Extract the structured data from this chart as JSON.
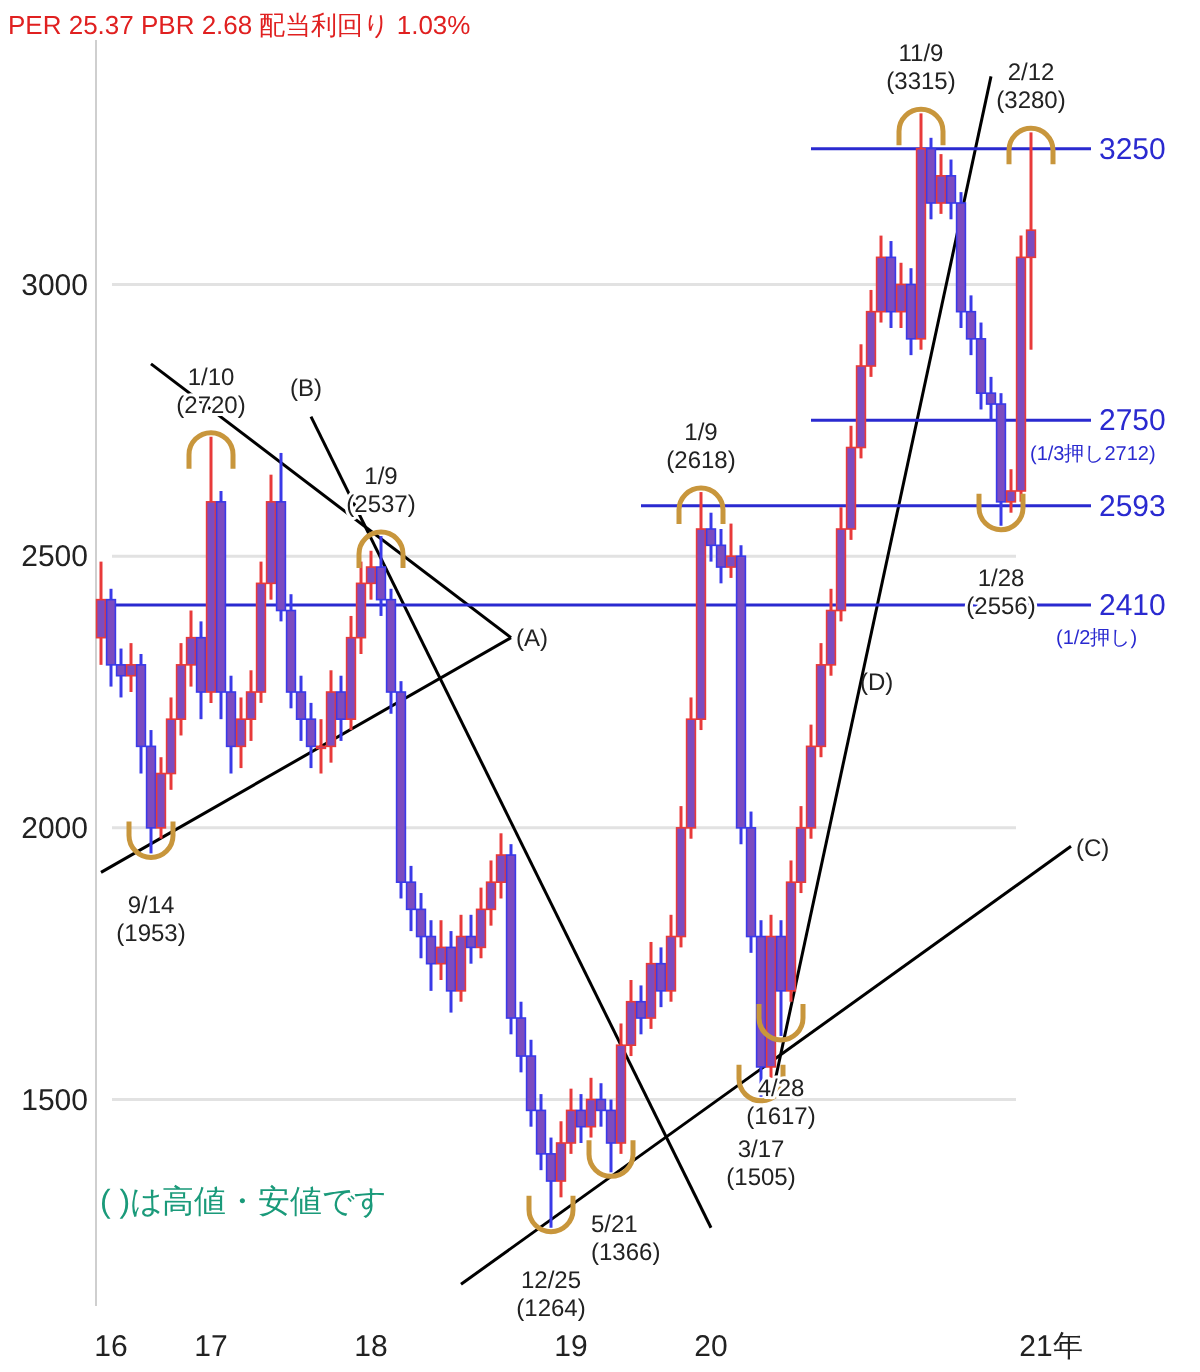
{
  "chart_data": {
    "type": "candlestick",
    "title": "PER 25.37 PBR 2.68 配当利回り 1.03%",
    "categories": [
      null,
      "16",
      null,
      null,
      null,
      null,
      null,
      null,
      null,
      null,
      null,
      "17",
      null,
      null,
      null,
      null,
      null,
      null,
      null,
      null,
      null,
      null,
      null,
      null,
      null,
      null,
      null,
      "18",
      null,
      null,
      null,
      null,
      null,
      null,
      null,
      null,
      null,
      null,
      null,
      null,
      null,
      null,
      null,
      null,
      null,
      null,
      null,
      "19",
      null,
      null,
      null,
      null,
      null,
      null,
      null,
      null,
      null,
      null,
      null,
      null,
      null,
      "20",
      null,
      null,
      null,
      null,
      null,
      null,
      null,
      null,
      null,
      null,
      null,
      null,
      null,
      null,
      null,
      null,
      null,
      null,
      null,
      null,
      null,
      null,
      null,
      null,
      null,
      null,
      null,
      null,
      null,
      null,
      null,
      null,
      null,
      "21年",
      null,
      null,
      null,
      null
    ],
    "ohlc": [
      [
        2350,
        2490,
        2300,
        2420
      ],
      [
        2420,
        2440,
        2260,
        2300
      ],
      [
        2300,
        2330,
        2240,
        2280
      ],
      [
        2280,
        2340,
        2250,
        2300
      ],
      [
        2300,
        2320,
        2100,
        2150
      ],
      [
        2150,
        2180,
        1953,
        2000
      ],
      [
        2000,
        2130,
        1980,
        2100
      ],
      [
        2100,
        2240,
        2070,
        2200
      ],
      [
        2200,
        2340,
        2170,
        2300
      ],
      [
        2300,
        2400,
        2260,
        2350
      ],
      [
        2350,
        2380,
        2200,
        2250
      ],
      [
        2250,
        2720,
        2230,
        2600
      ],
      [
        2600,
        2620,
        2200,
        2250
      ],
      [
        2250,
        2280,
        2100,
        2150
      ],
      [
        2150,
        2240,
        2110,
        2200
      ],
      [
        2200,
        2290,
        2160,
        2250
      ],
      [
        2250,
        2490,
        2230,
        2450
      ],
      [
        2450,
        2650,
        2420,
        2600
      ],
      [
        2600,
        2690,
        2380,
        2400
      ],
      [
        2400,
        2430,
        2220,
        2250
      ],
      [
        2250,
        2280,
        2160,
        2200
      ],
      [
        2200,
        2230,
        2110,
        2150
      ],
      [
        2150,
        2200,
        2100,
        2150
      ],
      [
        2150,
        2290,
        2120,
        2250
      ],
      [
        2250,
        2280,
        2160,
        2200
      ],
      [
        2200,
        2390,
        2180,
        2350
      ],
      [
        2350,
        2490,
        2320,
        2450
      ],
      [
        2450,
        2510,
        2420,
        2480
      ],
      [
        2480,
        2537,
        2390,
        2420
      ],
      [
        2420,
        2440,
        2210,
        2250
      ],
      [
        2250,
        2270,
        1870,
        1900
      ],
      [
        1900,
        1930,
        1810,
        1850
      ],
      [
        1850,
        1880,
        1760,
        1800
      ],
      [
        1800,
        1830,
        1700,
        1750
      ],
      [
        1750,
        1830,
        1720,
        1780
      ],
      [
        1780,
        1810,
        1660,
        1700
      ],
      [
        1700,
        1840,
        1680,
        1800
      ],
      [
        1800,
        1840,
        1750,
        1780
      ],
      [
        1780,
        1890,
        1760,
        1850
      ],
      [
        1850,
        1940,
        1820,
        1900
      ],
      [
        1900,
        1990,
        1870,
        1950
      ],
      [
        1950,
        1970,
        1620,
        1650
      ],
      [
        1650,
        1680,
        1550,
        1580
      ],
      [
        1580,
        1610,
        1450,
        1480
      ],
      [
        1480,
        1510,
        1370,
        1400
      ],
      [
        1400,
        1430,
        1264,
        1350
      ],
      [
        1350,
        1460,
        1320,
        1420
      ],
      [
        1420,
        1520,
        1400,
        1480
      ],
      [
        1480,
        1510,
        1420,
        1450
      ],
      [
        1450,
        1540,
        1430,
        1500
      ],
      [
        1500,
        1530,
        1450,
        1480
      ],
      [
        1480,
        1500,
        1366,
        1420
      ],
      [
        1420,
        1640,
        1400,
        1600
      ],
      [
        1600,
        1720,
        1580,
        1680
      ],
      [
        1680,
        1710,
        1620,
        1650
      ],
      [
        1650,
        1790,
        1630,
        1750
      ],
      [
        1750,
        1780,
        1670,
        1700
      ],
      [
        1700,
        1840,
        1680,
        1800
      ],
      [
        1800,
        2040,
        1780,
        2000
      ],
      [
        2000,
        2240,
        1980,
        2200
      ],
      [
        2200,
        2618,
        2180,
        2550
      ],
      [
        2550,
        2580,
        2490,
        2520
      ],
      [
        2520,
        2550,
        2450,
        2480
      ],
      [
        2480,
        2560,
        2460,
        2500
      ],
      [
        2500,
        2520,
        1970,
        2000
      ],
      [
        2000,
        2030,
        1770,
        1800
      ],
      [
        1800,
        1830,
        1505,
        1560
      ],
      [
        1560,
        1840,
        1540,
        1800
      ],
      [
        1800,
        1830,
        1617,
        1700
      ],
      [
        1700,
        1940,
        1680,
        1900
      ],
      [
        1900,
        2040,
        1880,
        2000
      ],
      [
        2000,
        2190,
        1980,
        2150
      ],
      [
        2150,
        2340,
        2130,
        2300
      ],
      [
        2300,
        2440,
        2280,
        2400
      ],
      [
        2400,
        2590,
        2380,
        2550
      ],
      [
        2550,
        2740,
        2530,
        2700
      ],
      [
        2700,
        2890,
        2680,
        2850
      ],
      [
        2850,
        2990,
        2830,
        2950
      ],
      [
        2950,
        3090,
        2930,
        3050
      ],
      [
        3050,
        3080,
        2920,
        2950
      ],
      [
        2950,
        3040,
        2920,
        3000
      ],
      [
        3000,
        3030,
        2870,
        2900
      ],
      [
        2900,
        3315,
        2880,
        3250
      ],
      [
        3250,
        3270,
        3120,
        3150
      ],
      [
        3150,
        3240,
        3130,
        3200
      ],
      [
        3200,
        3230,
        3120,
        3150
      ],
      [
        3150,
        3170,
        2920,
        2950
      ],
      [
        2950,
        2980,
        2870,
        2900
      ],
      [
        2900,
        2930,
        2770,
        2800
      ],
      [
        2800,
        2830,
        2750,
        2780
      ],
      [
        2780,
        2800,
        2556,
        2600
      ],
      [
        2600,
        2660,
        2580,
        2620
      ],
      [
        2620,
        3090,
        2600,
        3050
      ],
      [
        3050,
        3280,
        2880,
        3100
      ],
      null,
      null,
      null,
      null,
      null,
      null
    ],
    "series": [
      {
        "type": "line",
        "color": "#000000",
        "values": [
          null,
          null,
          null,
          null,
          null,
          2854,
          null,
          null,
          null,
          null,
          null,
          null,
          null,
          null,
          null,
          null,
          null,
          null,
          null,
          null,
          null,
          null,
          null,
          null,
          null,
          null,
          null,
          null,
          null,
          null,
          null,
          null,
          null,
          null,
          null,
          null,
          null,
          null,
          null,
          null,
          null,
          2350,
          null,
          null,
          null,
          null,
          null,
          null,
          null,
          null,
          null,
          null,
          null,
          null,
          null,
          null,
          null,
          null,
          null,
          null,
          null,
          null,
          null,
          null,
          null,
          null,
          null,
          null,
          null,
          null,
          null,
          null,
          null,
          null,
          null,
          null,
          null,
          null,
          null,
          null,
          null,
          null,
          null,
          null,
          null,
          null,
          null,
          null,
          null,
          null,
          null,
          null,
          null,
          null,
          null,
          null,
          null,
          null,
          null,
          null
        ]
      },
      {
        "type": "line",
        "color": "#000000",
        "values": [
          1918,
          null,
          null,
          null,
          null,
          null,
          null,
          null,
          null,
          null,
          null,
          null,
          null,
          null,
          null,
          null,
          null,
          null,
          null,
          null,
          null,
          null,
          null,
          null,
          null,
          null,
          null,
          null,
          null,
          null,
          null,
          null,
          null,
          null,
          null,
          null,
          null,
          null,
          null,
          null,
          null,
          2350,
          null,
          null,
          null,
          null,
          null,
          null,
          null,
          null,
          null,
          null,
          null,
          null,
          null,
          null,
          null,
          null,
          null,
          null,
          null,
          null,
          null,
          null,
          null,
          null,
          null,
          null,
          null,
          null,
          null,
          null,
          null,
          null,
          null,
          null,
          null,
          null,
          null,
          null,
          null,
          null,
          null,
          null,
          null,
          null,
          null,
          null,
          null,
          null,
          null,
          null,
          null,
          null,
          null,
          null,
          null,
          null,
          null,
          null
        ]
      },
      {
        "type": "line",
        "color": "#000000",
        "values": [
          null,
          null,
          null,
          null,
          null,
          null,
          null,
          null,
          null,
          null,
          null,
          null,
          null,
          null,
          null,
          null,
          null,
          null,
          null,
          null,
          null,
          2757,
          null,
          null,
          null,
          null,
          null,
          null,
          null,
          null,
          null,
          null,
          null,
          null,
          null,
          null,
          null,
          null,
          null,
          null,
          null,
          null,
          null,
          null,
          null,
          null,
          null,
          null,
          null,
          null,
          null,
          null,
          null,
          null,
          null,
          null,
          null,
          null,
          null,
          null,
          null,
          1264,
          null,
          null,
          null,
          null,
          null,
          null,
          null,
          null,
          null,
          null,
          null,
          null,
          null,
          null,
          null,
          null,
          null,
          null,
          null,
          null,
          null,
          null,
          null,
          null,
          null,
          null,
          null,
          null,
          null,
          null,
          null,
          null,
          null,
          null,
          null,
          null,
          null,
          null
        ]
      },
      {
        "type": "line",
        "color": "#000000",
        "values": [
          null,
          null,
          null,
          null,
          null,
          null,
          null,
          null,
          null,
          null,
          null,
          null,
          null,
          null,
          null,
          null,
          null,
          null,
          null,
          null,
          null,
          null,
          null,
          null,
          null,
          null,
          null,
          null,
          null,
          null,
          null,
          null,
          null,
          null,
          null,
          null,
          1160,
          null,
          null,
          null,
          null,
          null,
          null,
          null,
          null,
          null,
          null,
          null,
          null,
          null,
          null,
          null,
          null,
          null,
          null,
          null,
          null,
          null,
          null,
          null,
          null,
          null,
          null,
          null,
          null,
          null,
          null,
          null,
          null,
          null,
          null,
          null,
          null,
          null,
          null,
          null,
          null,
          null,
          null,
          null,
          null,
          null,
          null,
          null,
          null,
          null,
          null,
          null,
          null,
          null,
          null,
          null,
          null,
          null,
          null,
          null,
          null,
          1966,
          null,
          null
        ]
      },
      {
        "type": "line",
        "color": "#000000",
        "values": [
          null,
          null,
          null,
          null,
          null,
          null,
          null,
          null,
          null,
          null,
          null,
          null,
          null,
          null,
          null,
          null,
          null,
          null,
          null,
          null,
          null,
          null,
          null,
          null,
          null,
          null,
          null,
          null,
          null,
          null,
          null,
          null,
          null,
          null,
          null,
          null,
          null,
          null,
          null,
          null,
          null,
          null,
          null,
          null,
          null,
          null,
          null,
          null,
          null,
          null,
          null,
          null,
          null,
          null,
          null,
          null,
          null,
          null,
          null,
          null,
          null,
          null,
          null,
          null,
          null,
          null,
          null,
          1500,
          null,
          null,
          null,
          null,
          null,
          null,
          null,
          null,
          null,
          null,
          null,
          null,
          null,
          null,
          null,
          null,
          null,
          null,
          null,
          null,
          null,
          3383,
          null,
          null,
          null,
          null,
          null,
          null,
          null,
          null,
          null,
          null
        ]
      },
      {
        "type": "line",
        "color": "#2a2ad0",
        "name": "3250",
        "values": [
          null,
          null,
          null,
          null,
          null,
          null,
          null,
          null,
          null,
          null,
          null,
          null,
          null,
          null,
          null,
          null,
          null,
          null,
          null,
          null,
          null,
          null,
          null,
          null,
          null,
          null,
          null,
          null,
          null,
          null,
          null,
          null,
          null,
          null,
          null,
          null,
          null,
          null,
          null,
          null,
          null,
          null,
          null,
          null,
          null,
          null,
          null,
          null,
          null,
          null,
          null,
          null,
          null,
          null,
          null,
          null,
          null,
          null,
          null,
          null,
          null,
          null,
          null,
          null,
          null,
          null,
          null,
          null,
          null,
          null,
          null,
          3250,
          null,
          null,
          null,
          null,
          null,
          null,
          null,
          null,
          null,
          null,
          null,
          null,
          null,
          null,
          null,
          null,
          null,
          null,
          null,
          null,
          null,
          null,
          null,
          null,
          null,
          null,
          null,
          3250
        ]
      },
      {
        "type": "line",
        "color": "#2a2ad0",
        "name": "2750",
        "values": [
          null,
          null,
          null,
          null,
          null,
          null,
          null,
          null,
          null,
          null,
          null,
          null,
          null,
          null,
          null,
          null,
          null,
          null,
          null,
          null,
          null,
          null,
          null,
          null,
          null,
          null,
          null,
          null,
          null,
          null,
          null,
          null,
          null,
          null,
          null,
          null,
          null,
          null,
          null,
          null,
          null,
          null,
          null,
          null,
          null,
          null,
          null,
          null,
          null,
          null,
          null,
          null,
          null,
          null,
          null,
          null,
          null,
          null,
          null,
          null,
          null,
          null,
          null,
          null,
          null,
          null,
          null,
          null,
          null,
          null,
          null,
          2750,
          null,
          null,
          null,
          null,
          null,
          null,
          null,
          null,
          null,
          null,
          null,
          null,
          null,
          null,
          null,
          null,
          null,
          null,
          null,
          null,
          null,
          null,
          null,
          null,
          null,
          null,
          null,
          2750
        ]
      },
      {
        "type": "line",
        "color": "#2a2ad0",
        "name": "2593",
        "values": [
          null,
          null,
          null,
          null,
          null,
          null,
          null,
          null,
          null,
          null,
          null,
          null,
          null,
          null,
          null,
          null,
          null,
          null,
          null,
          null,
          null,
          null,
          null,
          null,
          null,
          null,
          null,
          null,
          null,
          null,
          null,
          null,
          null,
          null,
          null,
          null,
          null,
          null,
          null,
          null,
          null,
          null,
          null,
          null,
          null,
          null,
          null,
          null,
          null,
          null,
          null,
          null,
          null,
          null,
          2593,
          null,
          null,
          null,
          null,
          null,
          null,
          null,
          null,
          null,
          null,
          null,
          null,
          null,
          null,
          null,
          null,
          null,
          null,
          null,
          null,
          null,
          null,
          null,
          null,
          null,
          null,
          null,
          null,
          null,
          null,
          null,
          null,
          null,
          null,
          null,
          null,
          null,
          null,
          null,
          null,
          null,
          null,
          null,
          null,
          2593
        ]
      },
      {
        "type": "line",
        "color": "#2a2ad0",
        "name": "2410",
        "values": [
          2410,
          null,
          null,
          null,
          null,
          null,
          null,
          null,
          null,
          null,
          null,
          null,
          null,
          null,
          null,
          null,
          null,
          null,
          null,
          null,
          null,
          null,
          null,
          null,
          null,
          null,
          null,
          null,
          null,
          null,
          null,
          null,
          null,
          null,
          null,
          null,
          null,
          null,
          null,
          null,
          null,
          null,
          null,
          null,
          null,
          null,
          null,
          null,
          null,
          null,
          null,
          null,
          null,
          null,
          null,
          null,
          null,
          null,
          null,
          null,
          null,
          null,
          null,
          null,
          null,
          null,
          null,
          null,
          null,
          null,
          null,
          null,
          null,
          null,
          null,
          null,
          null,
          null,
          null,
          null,
          null,
          null,
          null,
          null,
          null,
          null,
          null,
          null,
          null,
          null,
          null,
          null,
          null,
          null,
          null,
          null,
          null,
          null,
          null,
          2410
        ]
      }
    ],
    "annotations": [
      {
        "text": "9/14\n(1953)",
        "y": 1953
      },
      {
        "text": "1/10\n(2720)",
        "y": 2720
      },
      {
        "text": "1/9\n(2537)",
        "y": 2537
      },
      {
        "text": "12/25\n(1264)",
        "y": 1264
      },
      {
        "text": "5/21\n(1366)",
        "y": 1366
      },
      {
        "text": "1/9\n(2618)",
        "y": 2618
      },
      {
        "text": "3/17\n(1505)",
        "y": 1505
      },
      {
        "text": "4/28\n(1617)",
        "y": 1617
      },
      {
        "text": "11/9\n(3315)",
        "y": 3315
      },
      {
        "text": "1/28\n(2556)",
        "y": 2556
      },
      {
        "text": "2/12\n(3280)",
        "y": 3280
      },
      "(A)",
      "(B)",
      "(C)",
      "(D)",
      "(1/3押し2712)",
      "(1/2押し)",
      "( )は高値・安値です"
    ],
    "ylim": [
      1120,
      3450
    ],
    "yticks": [
      1500,
      2000,
      2500,
      3000
    ],
    "grid": "y"
  }
}
